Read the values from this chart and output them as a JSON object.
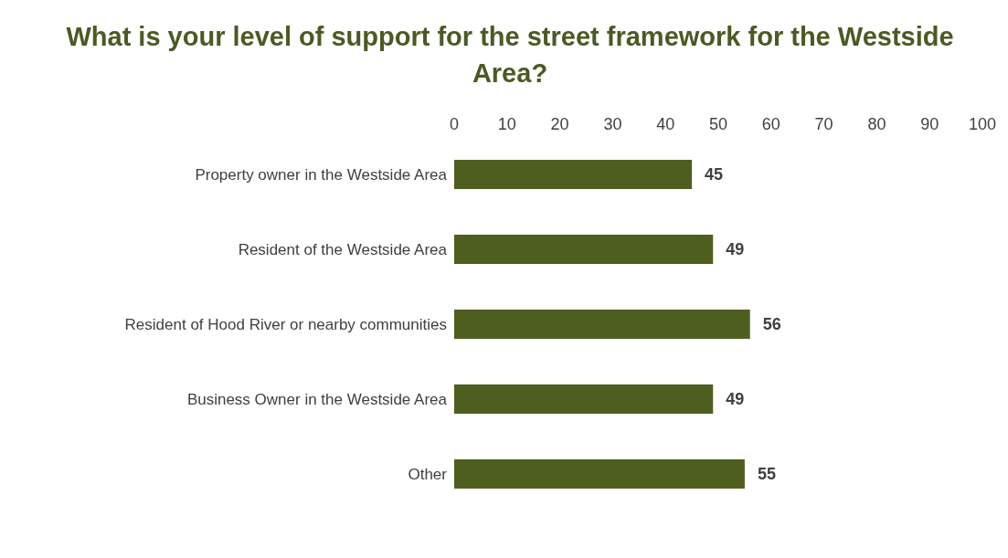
{
  "chart_data": {
    "type": "bar",
    "orientation": "horizontal",
    "title": "What is your level of support for the street framework for the Westside Area?",
    "categories": [
      "Property owner in the Westside Area",
      "Resident of the Westside Area",
      "Resident of Hood River or nearby communities",
      "Business Owner in the Westside Area",
      "Other"
    ],
    "values": [
      45,
      49,
      56,
      49,
      55
    ],
    "color": "#4e5e1e",
    "data_labels": true,
    "xlim": [
      0,
      100
    ],
    "xticks": [
      0,
      10,
      20,
      30,
      40,
      50,
      60,
      70,
      80,
      90,
      100
    ],
    "grid": false,
    "legend": false
  }
}
